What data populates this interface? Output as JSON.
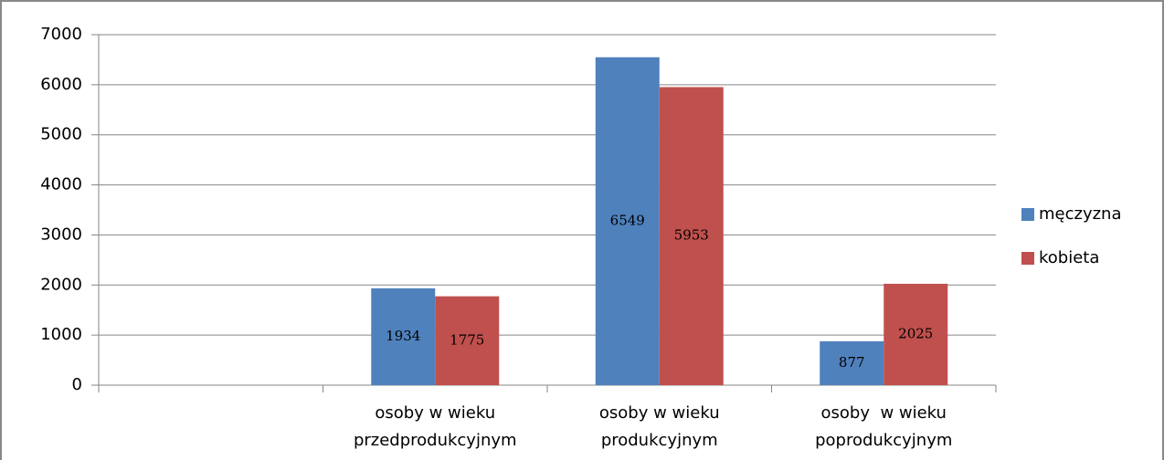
{
  "chart_data": {
    "type": "bar",
    "categories": [
      null,
      "osoby w wieku przedprodukcyjnym",
      "osoby w wieku produkcyjnym",
      "osoby  w wieku poprodukcyjnym"
    ],
    "series": [
      {
        "name": "męczyzna",
        "color": "#4f81bd",
        "values": [
          null,
          1934,
          6549,
          877
        ]
      },
      {
        "name": "kobieta",
        "color": "#c0504d",
        "values": [
          null,
          1775,
          5953,
          2025
        ]
      }
    ],
    "ylim": [
      0,
      7000
    ],
    "yticks": [
      0,
      1000,
      2000,
      3000,
      4000,
      5000,
      6000,
      7000
    ],
    "grid": true,
    "legend": "right"
  }
}
